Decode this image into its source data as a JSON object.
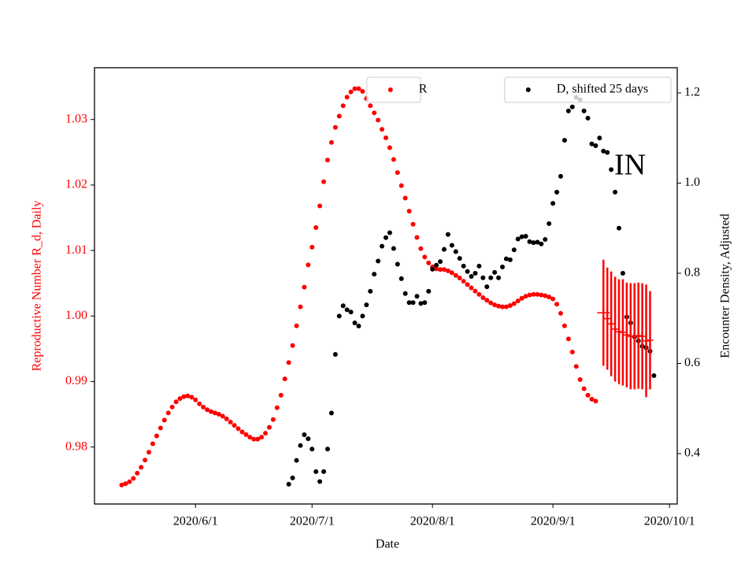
{
  "chart_data": {
    "type": "scatter",
    "annotation": "IN",
    "xlabel": "Date",
    "ylabel": "Reproductive Number R_d, Daily",
    "y2label": "Encounter Density, Adjusted",
    "xlim": [
      "2020-05-06",
      "2020-10-03"
    ],
    "xticks": [
      {
        "value": "2020-06-01",
        "label": "2020/6/1"
      },
      {
        "value": "2020-07-01",
        "label": "2020/7/1"
      },
      {
        "value": "2020-08-01",
        "label": "2020/8/1"
      },
      {
        "value": "2020-09-01",
        "label": "2020/9/1"
      },
      {
        "value": "2020-10-01",
        "label": "2020/10/1"
      }
    ],
    "ylim": [
      0.9713,
      1.0379
    ],
    "yticks": [
      0.98,
      0.99,
      {
        "value": 1,
        "label": "1.00"
      },
      1.01,
      1.02,
      1.03
    ],
    "y2lim": [
      0.2882,
      1.2559
    ],
    "y2ticks": [
      0.4,
      0.6,
      0.8,
      {
        "value": 1,
        "label": "1.0"
      },
      1.2
    ],
    "ycolor": "#ff0000",
    "series": [
      {
        "name": "R",
        "type": "scatter",
        "color": "#ff0000",
        "legend": "upper center",
        "x": [
          "2020-05-13",
          "2020-05-14",
          "2020-05-15",
          "2020-05-16",
          "2020-05-17",
          "2020-05-18",
          "2020-05-19",
          "2020-05-20",
          "2020-05-21",
          "2020-05-22",
          "2020-05-23",
          "2020-05-24",
          "2020-05-25",
          "2020-05-26",
          "2020-05-27",
          "2020-05-28",
          "2020-05-29",
          "2020-05-30",
          "2020-05-31",
          "2020-06-01",
          "2020-06-02",
          "2020-06-03",
          "2020-06-04",
          "2020-06-05",
          "2020-06-06",
          "2020-06-07",
          "2020-06-08",
          "2020-06-09",
          "2020-06-10",
          "2020-06-11",
          "2020-06-12",
          "2020-06-13",
          "2020-06-14",
          "2020-06-15",
          "2020-06-16",
          "2020-06-17",
          "2020-06-18",
          "2020-06-19",
          "2020-06-20",
          "2020-06-21",
          "2020-06-22",
          "2020-06-23",
          "2020-06-24",
          "2020-06-25",
          "2020-06-26",
          "2020-06-27",
          "2020-06-28",
          "2020-06-29",
          "2020-06-30",
          "2020-07-01",
          "2020-07-02",
          "2020-07-03",
          "2020-07-04",
          "2020-07-05",
          "2020-07-06",
          "2020-07-07",
          "2020-07-08",
          "2020-07-09",
          "2020-07-10",
          "2020-07-11",
          "2020-07-12",
          "2020-07-13",
          "2020-07-14",
          "2020-07-15",
          "2020-07-16",
          "2020-07-17",
          "2020-07-18",
          "2020-07-19",
          "2020-07-20",
          "2020-07-21",
          "2020-07-22",
          "2020-07-23",
          "2020-07-24",
          "2020-07-25",
          "2020-07-26",
          "2020-07-27",
          "2020-07-28",
          "2020-07-29",
          "2020-07-30",
          "2020-07-31",
          "2020-08-01",
          "2020-08-02",
          "2020-08-03",
          "2020-08-04",
          "2020-08-05",
          "2020-08-06",
          "2020-08-07",
          "2020-08-08",
          "2020-08-09",
          "2020-08-10",
          "2020-08-11",
          "2020-08-12",
          "2020-08-13",
          "2020-08-14",
          "2020-08-15",
          "2020-08-16",
          "2020-08-17",
          "2020-08-18",
          "2020-08-19",
          "2020-08-20",
          "2020-08-21",
          "2020-08-22",
          "2020-08-23",
          "2020-08-24",
          "2020-08-25",
          "2020-08-26",
          "2020-08-27",
          "2020-08-28",
          "2020-08-29",
          "2020-08-30",
          "2020-08-31",
          "2020-09-01",
          "2020-09-02",
          "2020-09-03",
          "2020-09-04",
          "2020-09-05",
          "2020-09-06",
          "2020-09-07",
          "2020-09-08",
          "2020-09-09",
          "2020-09-10",
          "2020-09-11",
          "2020-09-12"
        ],
        "values": [
          0.9742,
          0.9744,
          0.9747,
          0.9752,
          0.976,
          0.9769,
          0.978,
          0.9792,
          0.9805,
          0.9817,
          0.9829,
          0.9841,
          0.9852,
          0.9861,
          0.9869,
          0.9874,
          0.9877,
          0.9878,
          0.9876,
          0.9872,
          0.9866,
          0.9861,
          0.9857,
          0.9854,
          0.9852,
          0.985,
          0.9847,
          0.9843,
          0.9838,
          0.9833,
          0.9828,
          0.9823,
          0.9819,
          0.9815,
          0.9812,
          0.9812,
          0.9815,
          0.9821,
          0.983,
          0.9842,
          0.986,
          0.9879,
          0.9904,
          0.9929,
          0.9955,
          0.9985,
          1.0014,
          1.0044,
          1.0078,
          1.0105,
          1.0135,
          1.0168,
          1.0205,
          1.0238,
          1.0265,
          1.0288,
          1.0305,
          1.0321,
          1.0334,
          1.0342,
          1.0347,
          1.0347,
          1.0343,
          1.0332,
          1.0321,
          1.031,
          1.0299,
          1.0285,
          1.0272,
          1.0257,
          1.0239,
          1.0219,
          1.0199,
          1.018,
          1.016,
          1.014,
          1.012,
          1.0103,
          1.009,
          1.0081,
          1.0075,
          1.0072,
          1.0071,
          1.0071,
          1.0069,
          1.0066,
          1.0062,
          1.0058,
          1.0053,
          1.0048,
          1.0043,
          1.0038,
          1.0033,
          1.0028,
          1.0024,
          1.002,
          1.0017,
          1.0015,
          1.0014,
          1.0014,
          1.0016,
          1.0019,
          1.0023,
          1.0027,
          1.003,
          1.0032,
          1.0033,
          1.0033,
          1.0032,
          1.0031,
          1.0029,
          1.0026,
          1.0018,
          1.0004,
          0.9985,
          0.9965,
          0.9945,
          0.9923,
          0.9903,
          0.9889,
          0.9879,
          0.9873,
          0.987
        ]
      },
      {
        "name": "D, shifted 25 days",
        "type": "scatter",
        "color": "#000000",
        "axis": "y2",
        "legend": "upper right",
        "x": [
          "2020-06-25",
          "2020-06-26",
          "2020-06-27",
          "2020-06-28",
          "2020-06-29",
          "2020-06-30",
          "2020-07-01",
          "2020-07-02",
          "2020-07-03",
          "2020-07-04",
          "2020-07-05",
          "2020-07-06",
          "2020-07-07",
          "2020-07-08",
          "2020-07-09",
          "2020-07-10",
          "2020-07-11",
          "2020-07-12",
          "2020-07-13",
          "2020-07-14",
          "2020-07-15",
          "2020-07-16",
          "2020-07-17",
          "2020-07-18",
          "2020-07-19",
          "2020-07-20",
          "2020-07-21",
          "2020-07-22",
          "2020-07-23",
          "2020-07-24",
          "2020-07-25",
          "2020-07-26",
          "2020-07-27",
          "2020-07-28",
          "2020-07-29",
          "2020-07-30",
          "2020-07-31",
          "2020-08-01",
          "2020-08-02",
          "2020-08-03",
          "2020-08-04",
          "2020-08-05",
          "2020-08-06",
          "2020-08-07",
          "2020-08-08",
          "2020-08-09",
          "2020-08-10",
          "2020-08-11",
          "2020-08-12",
          "2020-08-13",
          "2020-08-14",
          "2020-08-15",
          "2020-08-16",
          "2020-08-17",
          "2020-08-18",
          "2020-08-19",
          "2020-08-20",
          "2020-08-21",
          "2020-08-22",
          "2020-08-23",
          "2020-08-24",
          "2020-08-25",
          "2020-08-26",
          "2020-08-27",
          "2020-08-28",
          "2020-08-29",
          "2020-08-30",
          "2020-08-31",
          "2020-09-01",
          "2020-09-02",
          "2020-09-03",
          "2020-09-04",
          "2020-09-05",
          "2020-09-06",
          "2020-09-07",
          "2020-09-08",
          "2020-09-09",
          "2020-09-10",
          "2020-09-11",
          "2020-09-12",
          "2020-09-13",
          "2020-09-14",
          "2020-09-15",
          "2020-09-16",
          "2020-09-17",
          "2020-09-18",
          "2020-09-19",
          "2020-09-20",
          "2020-09-21",
          "2020-09-22",
          "2020-09-23",
          "2020-09-24",
          "2020-09-25",
          "2020-09-26",
          "2020-09-27"
        ],
        "values": [
          0.332,
          0.346,
          0.385,
          0.418,
          0.442,
          0.433,
          0.41,
          0.36,
          0.338,
          0.36,
          0.41,
          0.49,
          0.62,
          0.705,
          0.728,
          0.719,
          0.714,
          0.69,
          0.683,
          0.705,
          0.73,
          0.76,
          0.798,
          0.827,
          0.86,
          0.879,
          0.89,
          0.855,
          0.82,
          0.788,
          0.755,
          0.735,
          0.735,
          0.749,
          0.733,
          0.735,
          0.76,
          0.809,
          0.818,
          0.826,
          0.853,
          0.886,
          0.862,
          0.848,
          0.833,
          0.816,
          0.804,
          0.793,
          0.8,
          0.816,
          0.79,
          0.77,
          0.79,
          0.802,
          0.79,
          0.814,
          0.832,
          0.83,
          0.852,
          0.876,
          0.881,
          0.882,
          0.87,
          0.868,
          0.869,
          0.865,
          0.875,
          0.91,
          0.955,
          0.98,
          1.015,
          1.095,
          1.16,
          1.169,
          1.19,
          1.185,
          1.16,
          1.144,
          1.087,
          1.083,
          1.1,
          1.071,
          1.068,
          1.03,
          0.98,
          0.9,
          0.8,
          0.703,
          0.69,
          0.659,
          0.65,
          0.638,
          0.635,
          0.627,
          0.573
        ]
      },
      {
        "type": "errorbar",
        "color": "#ff0000",
        "x": [
          "2020-09-14",
          "2020-09-15",
          "2020-09-16",
          "2020-09-17",
          "2020-09-18",
          "2020-09-19",
          "2020-09-20",
          "2020-09-21",
          "2020-09-22",
          "2020-09-23",
          "2020-09-24",
          "2020-09-25",
          "2020-09-26"
        ],
        "values": [
          1.0005,
          0.9996,
          0.9988,
          0.998,
          0.9976,
          0.9975,
          0.9971,
          0.9969,
          0.9969,
          0.997,
          0.9969,
          0.9962,
          0.9963
        ],
        "errors": [
          0.0081,
          0.0078,
          0.008,
          0.008,
          0.008,
          0.0081,
          0.008,
          0.0081,
          0.0081,
          0.0081,
          0.0081,
          0.0086,
          0.0075
        ]
      }
    ]
  }
}
